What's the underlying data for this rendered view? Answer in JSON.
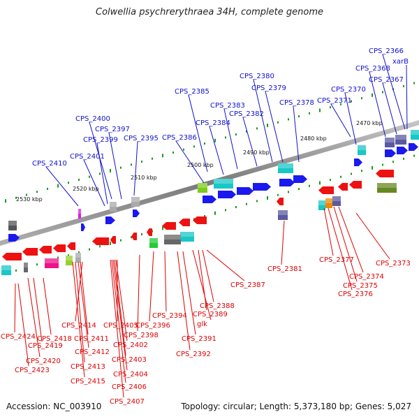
{
  "title": "Colwellia psychrerythraea 34H, complete genome",
  "footer": {
    "accession": "Accession: NC_003910",
    "stats": "Topology: circular; Length: 5,373,180 bp; Genes: 5,027"
  },
  "colors": {
    "forward_label": "#1010cc",
    "reverse_label": "#dd0000",
    "backbone": "#8a8a8a",
    "tick": "#1a9a1a",
    "forward_arrow": "#1a1aee",
    "reverse_arrow": "#ee1111"
  },
  "scale": [
    {
      "label": "2470 kbp"
    },
    {
      "label": "2480 kbp"
    },
    {
      "label": "2490 kbp"
    },
    {
      "label": "2500 kbp"
    },
    {
      "label": "2510 kbp"
    },
    {
      "label": "2520 kbp"
    },
    {
      "label": "2530 kbp"
    }
  ],
  "forward_genes": [
    {
      "label": "CPS_2366"
    },
    {
      "label": "xarB"
    },
    {
      "label": "CPS_2367"
    },
    {
      "label": "CPS_2368"
    },
    {
      "label": "CPS_2370"
    },
    {
      "label": "CPS_2371"
    },
    {
      "label": "CPS_2378"
    },
    {
      "label": "CPS_2379"
    },
    {
      "label": "CPS_2380"
    },
    {
      "label": "CPS_2382"
    },
    {
      "label": "CPS_2383"
    },
    {
      "label": "CPS_2384"
    },
    {
      "label": "CPS_2385"
    },
    {
      "label": "CPS_2386"
    },
    {
      "label": "CPS_2395"
    },
    {
      "label": "CPS_2397"
    },
    {
      "label": "CPS_2400"
    },
    {
      "label": "CPS_2399"
    },
    {
      "label": "CPS_2401"
    },
    {
      "label": "CPS_2410"
    }
  ],
  "reverse_genes": [
    {
      "label": "CPS_2373"
    },
    {
      "label": "CPS_2374"
    },
    {
      "label": "CPS_2375"
    },
    {
      "label": "CPS_2376"
    },
    {
      "label": "CPS_2377"
    },
    {
      "label": "CPS_2381"
    },
    {
      "label": "CPS_2387"
    },
    {
      "label": "CPS_2388"
    },
    {
      "label": "CPS_2389"
    },
    {
      "label": "glk"
    },
    {
      "label": "CPS_2391"
    },
    {
      "label": "CPS_2392"
    },
    {
      "label": "CPS_2394"
    },
    {
      "label": "CPS_2396"
    },
    {
      "label": "CPS_2398"
    },
    {
      "label": "CPS_2405"
    },
    {
      "label": "CPS_2402"
    },
    {
      "label": "CPS_2403"
    },
    {
      "label": "CPS_2404"
    },
    {
      "label": "CPS_2406"
    },
    {
      "label": "CPS_2407"
    },
    {
      "label": "CPS_2414"
    },
    {
      "label": "CPS_2411"
    },
    {
      "label": "CPS_2412"
    },
    {
      "label": "CPS_2413"
    },
    {
      "label": "CPS_2415"
    },
    {
      "label": "CPS_2424"
    },
    {
      "label": "CPS_2418"
    },
    {
      "label": "CPS_2419"
    },
    {
      "label": "CPS_2420"
    },
    {
      "label": "CPS_2423"
    }
  ]
}
